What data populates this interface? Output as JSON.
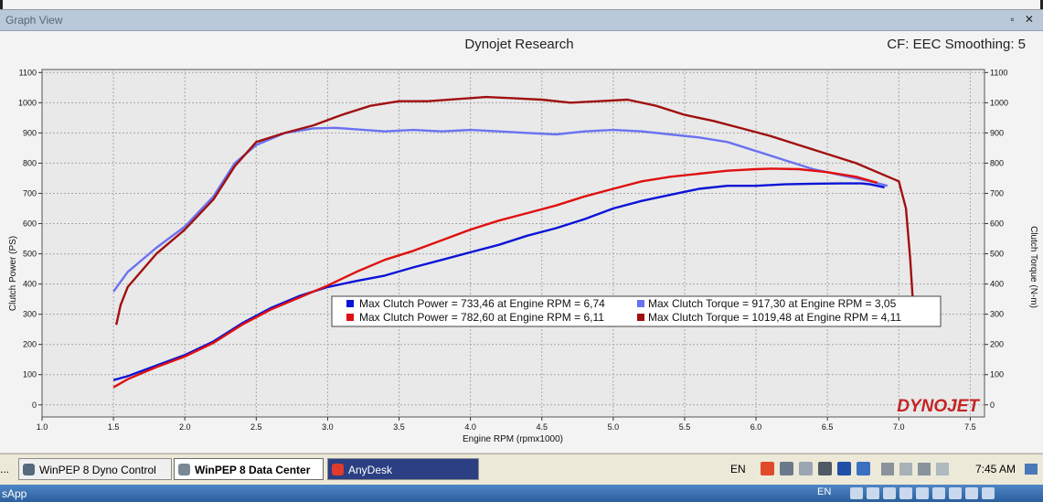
{
  "window": {
    "title": "Graph View",
    "controls": "▫ ✕"
  },
  "chart_data": {
    "type": "line",
    "title": "Dynojet Research",
    "header_right": "CF: EEC Smoothing: 5",
    "xlabel": "Engine RPM (rpmx1000)",
    "ylabel_left": "Clutch Power (PS)",
    "ylabel_right": "Clutch Torque (N-m)",
    "xlim": [
      1.0,
      7.6
    ],
    "ylim": [
      -40,
      1110
    ],
    "x_ticks": [
      "1.0",
      "1.5",
      "2.0",
      "2.5",
      "3.0",
      "3.5",
      "4.0",
      "4.5",
      "5.0",
      "5.5",
      "6.0",
      "6.5",
      "7.0",
      "7.5"
    ],
    "y_ticks": [
      "0",
      "100",
      "200",
      "300",
      "400",
      "500",
      "600",
      "700",
      "800",
      "900",
      "1000",
      "1100"
    ],
    "grid": true,
    "legend_position": "center",
    "watermark": "DYNOJET",
    "series": [
      {
        "name": "Max Clutch Power = 733,46 at Engine RPM = 6,74",
        "color": "#0b14d6",
        "x": [
          1.5,
          1.6,
          1.8,
          2.0,
          2.2,
          2.4,
          2.6,
          2.8,
          3.0,
          3.2,
          3.4,
          3.6,
          3.8,
          4.0,
          4.2,
          4.4,
          4.6,
          4.8,
          5.0,
          5.2,
          5.4,
          5.6,
          5.8,
          6.0,
          6.2,
          6.4,
          6.6,
          6.74,
          6.8,
          6.9
        ],
        "y": [
          82,
          95,
          130,
          165,
          210,
          270,
          320,
          360,
          390,
          410,
          428,
          455,
          480,
          505,
          530,
          560,
          585,
          615,
          650,
          675,
          695,
          715,
          725,
          725,
          730,
          732,
          733,
          733,
          730,
          720
        ]
      },
      {
        "name": "Max Clutch Torque = 917,30 at Engine RPM = 3,05",
        "color": "#6a72f0",
        "x": [
          1.5,
          1.6,
          1.8,
          2.0,
          2.2,
          2.35,
          2.5,
          2.7,
          2.9,
          3.05,
          3.2,
          3.4,
          3.6,
          3.8,
          4.0,
          4.2,
          4.4,
          4.6,
          4.8,
          5.0,
          5.2,
          5.4,
          5.6,
          5.8,
          6.0,
          6.2,
          6.4,
          6.6,
          6.8,
          6.92
        ],
        "y": [
          375,
          440,
          520,
          590,
          690,
          800,
          860,
          900,
          915,
          917,
          912,
          905,
          910,
          905,
          910,
          905,
          900,
          895,
          905,
          910,
          905,
          895,
          885,
          870,
          840,
          810,
          780,
          760,
          740,
          725
        ]
      },
      {
        "name": "Max Clutch Power = 782,60 at Engine RPM = 6,11",
        "color": "#e01010",
        "x": [
          1.5,
          1.6,
          1.8,
          2.0,
          2.2,
          2.4,
          2.6,
          2.8,
          3.0,
          3.2,
          3.4,
          3.6,
          3.8,
          4.0,
          4.2,
          4.4,
          4.6,
          4.8,
          5.0,
          5.2,
          5.4,
          5.6,
          5.8,
          6.0,
          6.11,
          6.3,
          6.5,
          6.7,
          6.85
        ],
        "y": [
          58,
          85,
          125,
          160,
          205,
          265,
          315,
          355,
          395,
          440,
          480,
          510,
          545,
          580,
          610,
          635,
          660,
          690,
          715,
          740,
          755,
          765,
          775,
          780,
          782,
          780,
          770,
          755,
          735
        ]
      },
      {
        "name": "Max Clutch Torque = 1019,48 at Engine RPM = 4,11",
        "color": "#a01010",
        "x": [
          1.52,
          1.55,
          1.6,
          1.8,
          2.0,
          2.2,
          2.35,
          2.5,
          2.7,
          2.9,
          3.1,
          3.3,
          3.5,
          3.7,
          3.9,
          4.11,
          4.3,
          4.5,
          4.7,
          4.9,
          5.1,
          5.3,
          5.5,
          5.7,
          5.9,
          6.1,
          6.3,
          6.5,
          6.7,
          6.9,
          7.0,
          7.05,
          7.08,
          7.1
        ],
        "y": [
          265,
          330,
          390,
          500,
          580,
          680,
          790,
          870,
          900,
          925,
          960,
          990,
          1005,
          1005,
          1012,
          1019,
          1015,
          1010,
          1000,
          1005,
          1010,
          990,
          960,
          940,
          915,
          890,
          860,
          830,
          800,
          760,
          740,
          650,
          480,
          330
        ]
      }
    ]
  },
  "taskbar": {
    "start_fragment": "...",
    "items": [
      {
        "label": "WinPEP 8 Dyno Control",
        "icon": "dyno-app-icon"
      },
      {
        "label": "WinPEP 8 Data Center",
        "icon": "data-center-icon"
      },
      {
        "label": "AnyDesk",
        "icon": "anydesk-icon"
      }
    ],
    "language": "EN",
    "time": "7:45 AM"
  },
  "host_bar": {
    "app_label": "sApp",
    "language": "EN"
  }
}
